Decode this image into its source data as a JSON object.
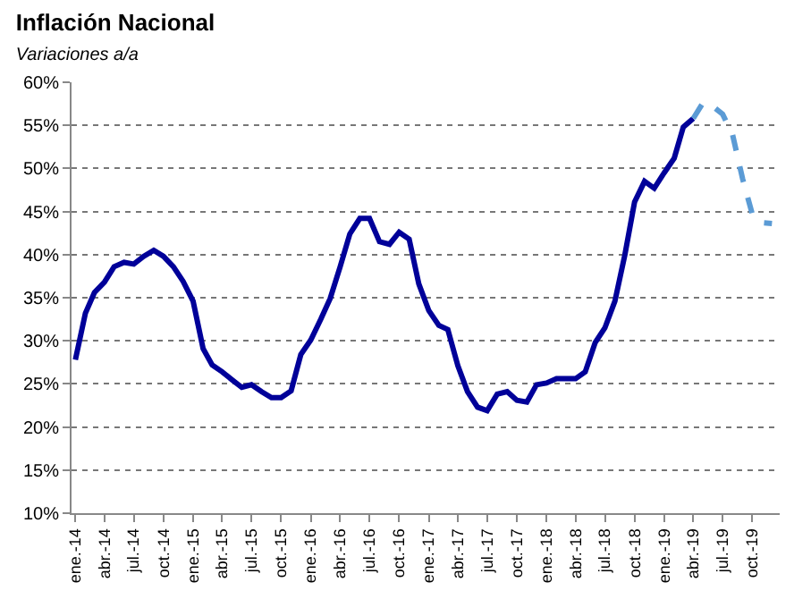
{
  "chart_data": {
    "type": "line",
    "title": "Inflación Nacional",
    "subtitle": "Variaciones a/a",
    "x": [
      "2014-01",
      "2014-02",
      "2014-03",
      "2014-04",
      "2014-05",
      "2014-06",
      "2014-07",
      "2014-08",
      "2014-09",
      "2014-10",
      "2014-11",
      "2014-12",
      "2015-01",
      "2015-02",
      "2015-03",
      "2015-04",
      "2015-05",
      "2015-06",
      "2015-07",
      "2015-08",
      "2015-09",
      "2015-10",
      "2015-11",
      "2015-12",
      "2016-01",
      "2016-02",
      "2016-03",
      "2016-04",
      "2016-05",
      "2016-06",
      "2016-07",
      "2016-08",
      "2016-09",
      "2016-10",
      "2016-11",
      "2016-12",
      "2017-01",
      "2017-02",
      "2017-03",
      "2017-04",
      "2017-05",
      "2017-06",
      "2017-07",
      "2017-08",
      "2017-09",
      "2017-10",
      "2017-11",
      "2017-12",
      "2018-01",
      "2018-02",
      "2018-03",
      "2018-04",
      "2018-05",
      "2018-06",
      "2018-07",
      "2018-08",
      "2018-09",
      "2018-10",
      "2018-11",
      "2018-12",
      "2019-01",
      "2019-02",
      "2019-03",
      "2019-04",
      "2019-05",
      "2019-06",
      "2019-07",
      "2019-08",
      "2019-09",
      "2019-10",
      "2019-11",
      "2019-12"
    ],
    "series": [
      {
        "color": "#000099",
        "line_style": "solid",
        "values": [
          27.8,
          33.2,
          35.6,
          36.8,
          38.6,
          39.1,
          38.9,
          39.8,
          40.5,
          39.8,
          38.6,
          36.9,
          34.6,
          29.1,
          27.2,
          26.4,
          25.5,
          24.6,
          24.9,
          24.1,
          23.4,
          23.4,
          24.2,
          28.4,
          30.1,
          32.5,
          34.9,
          38.6,
          42.4,
          44.2,
          44.2,
          41.5,
          41.2,
          42.6,
          41.8,
          36.6,
          33.5,
          31.8,
          31.3,
          27.1,
          24.1,
          22.3,
          21.9,
          23.8,
          24.1,
          23.1,
          22.9,
          24.9,
          25.1,
          25.6,
          25.6,
          25.6,
          26.4,
          29.8,
          31.5,
          34.6,
          40,
          46.1,
          48.5,
          47.7,
          49.5,
          51.2,
          54.8,
          55.8,
          null,
          null,
          null,
          null,
          null,
          null,
          null,
          null
        ]
      },
      {
        "color": "#5b9bd5",
        "line_style": "dashed",
        "values": [
          null,
          null,
          null,
          null,
          null,
          null,
          null,
          null,
          null,
          null,
          null,
          null,
          null,
          null,
          null,
          null,
          null,
          null,
          null,
          null,
          null,
          null,
          null,
          null,
          null,
          null,
          null,
          null,
          null,
          null,
          null,
          null,
          null,
          null,
          null,
          null,
          null,
          null,
          null,
          null,
          null,
          null,
          null,
          null,
          null,
          null,
          null,
          null,
          null,
          null,
          null,
          null,
          null,
          null,
          null,
          null,
          null,
          null,
          null,
          null,
          null,
          null,
          null,
          55.8,
          57.6,
          57.2,
          56.3,
          53.9,
          48.8,
          44.7,
          43.7,
          43.6
        ]
      }
    ],
    "xlim": [
      "2013-12-20",
      "2019-12-25"
    ],
    "xticks": [
      {
        "value": "2014-01",
        "label": "ene.-14"
      },
      {
        "value": "2014-04",
        "label": "abr.-14"
      },
      {
        "value": "2014-07",
        "label": "jul.-14"
      },
      {
        "value": "2014-10",
        "label": "oct.-14"
      },
      {
        "value": "2015-01",
        "label": "ene.-15"
      },
      {
        "value": "2015-04",
        "label": "abr.-15"
      },
      {
        "value": "2015-07",
        "label": "jul.-15"
      },
      {
        "value": "2015-10",
        "label": "oct.-15"
      },
      {
        "value": "2016-01",
        "label": "ene.-16"
      },
      {
        "value": "2016-04",
        "label": "abr.-16"
      },
      {
        "value": "2016-07",
        "label": "jul.-16"
      },
      {
        "value": "2016-10",
        "label": "oct.-16"
      },
      {
        "value": "2017-01",
        "label": "ene.-17"
      },
      {
        "value": "2017-04",
        "label": "abr.-17"
      },
      {
        "value": "2017-07",
        "label": "jul.-17"
      },
      {
        "value": "2017-10",
        "label": "oct.-17"
      },
      {
        "value": "2018-01",
        "label": "ene.-18"
      },
      {
        "value": "2018-04",
        "label": "abr.-18"
      },
      {
        "value": "2018-07",
        "label": "jul.-18"
      },
      {
        "value": "2018-10",
        "label": "oct.-18"
      },
      {
        "value": "2019-01",
        "label": "ene.-19"
      },
      {
        "value": "2019-04",
        "label": "abr.-19"
      },
      {
        "value": "2019-07",
        "label": "jul.-19"
      },
      {
        "value": "2019-10",
        "label": "oct.-19"
      }
    ],
    "ylim": [
      10,
      60
    ],
    "yticks": [
      {
        "value": 10,
        "label": "10%"
      },
      {
        "value": 15,
        "label": "15%"
      },
      {
        "value": 20,
        "label": "20%"
      },
      {
        "value": 25,
        "label": "25%"
      },
      {
        "value": 30,
        "label": "30%"
      },
      {
        "value": 35,
        "label": "35%"
      },
      {
        "value": 40,
        "label": "40%"
      },
      {
        "value": 45,
        "label": "45%"
      },
      {
        "value": 50,
        "label": "50%"
      },
      {
        "value": 55,
        "label": "55%"
      },
      {
        "value": 60,
        "label": "60%"
      }
    ],
    "grid": "y",
    "legend": false
  }
}
